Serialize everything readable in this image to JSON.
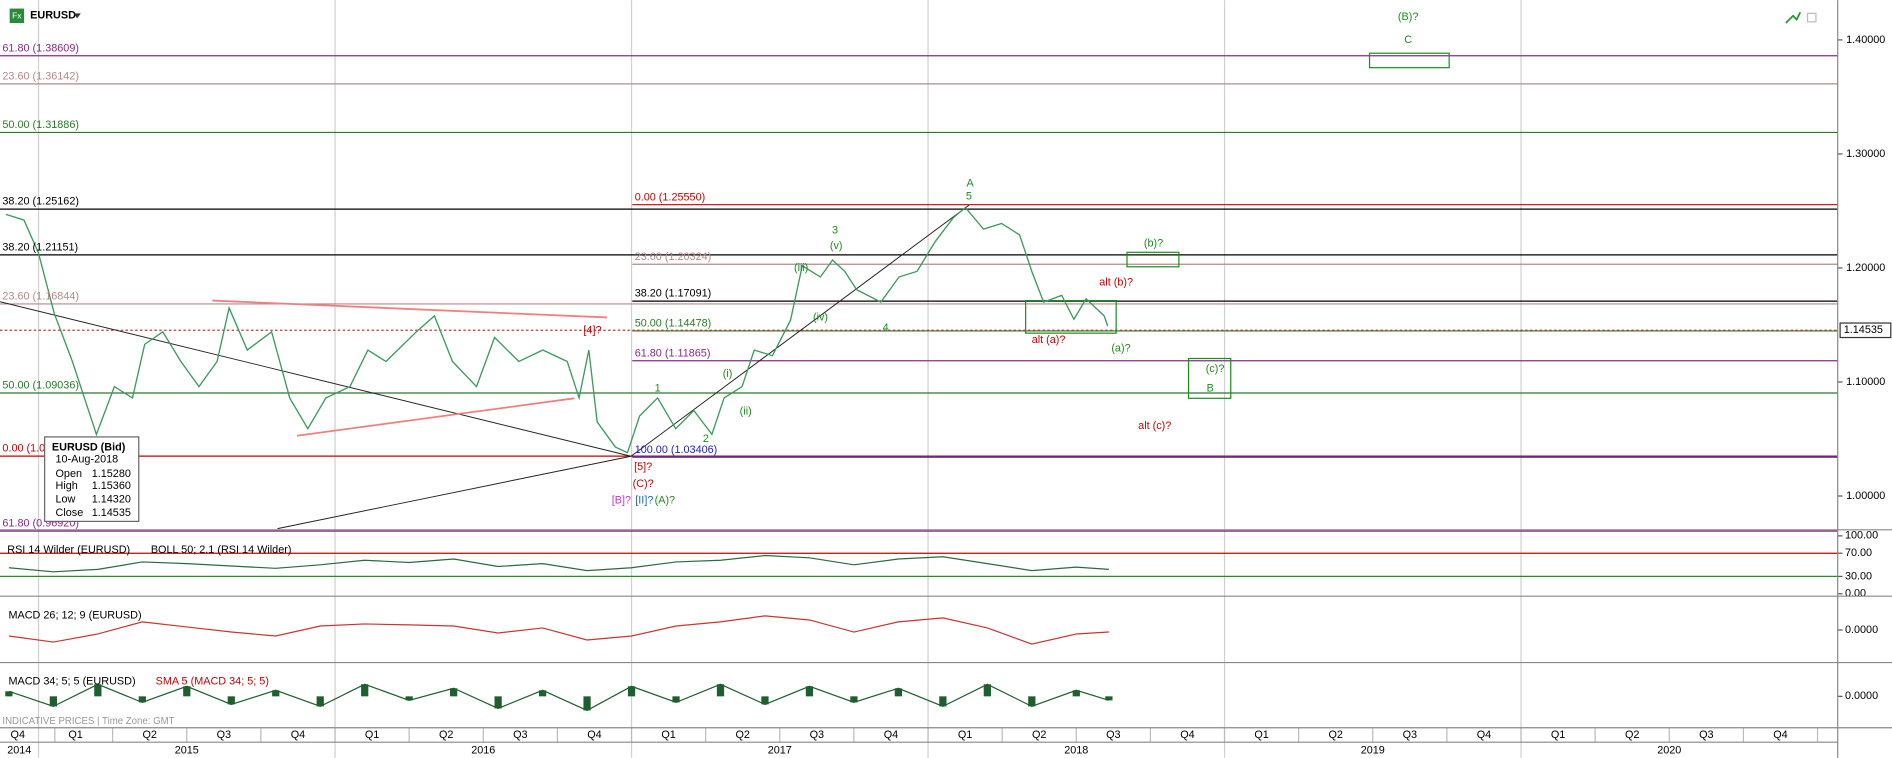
{
  "header": {
    "symbol": "EURUSD"
  },
  "chart_data": {
    "type": "line",
    "x": [
      2014.89,
      2014.951,
      2015.0,
      2015.053,
      2015.114,
      2015.195,
      2015.256,
      2015.317,
      2015.358,
      2015.419,
      2015.48,
      2015.541,
      2015.602,
      2015.643,
      2015.704,
      2015.786,
      2015.847,
      2015.908,
      2015.969,
      2016.05,
      2016.111,
      2016.172,
      2016.274,
      2016.335,
      2016.396,
      2016.477,
      2016.538,
      2016.62,
      2016.701,
      2016.783,
      2016.823,
      2016.856,
      2016.884,
      2016.945,
      2016.986,
      2017.027,
      2017.088,
      2017.149,
      2017.21,
      2017.271,
      2017.312,
      2017.373,
      2017.414,
      2017.475,
      2017.536,
      2017.576,
      2017.637,
      2017.678,
      2017.719,
      2017.759,
      2017.841,
      2017.902,
      2017.963,
      2018.024,
      2018.085,
      2018.126,
      2018.187,
      2018.248,
      2018.309,
      2018.35,
      2018.39,
      2018.451,
      2018.492,
      2018.533,
      2018.594,
      2018.606
    ],
    "series": [
      {
        "name": "EURUSD",
        "color": "#3b9a5c",
        "values": [
          1.247,
          1.242,
          1.213,
          1.16,
          1.118,
          1.054,
          1.096,
          1.086,
          1.133,
          1.144,
          1.118,
          1.096,
          1.118,
          1.165,
          1.128,
          1.144,
          1.086,
          1.059,
          1.086,
          1.096,
          1.128,
          1.118,
          1.144,
          1.158,
          1.118,
          1.096,
          1.139,
          1.118,
          1.128,
          1.118,
          1.086,
          1.128,
          1.065,
          1.043,
          1.038,
          1.07,
          1.086,
          1.059,
          1.075,
          1.054,
          1.086,
          1.096,
          1.128,
          1.123,
          1.154,
          1.202,
          1.192,
          1.207,
          1.197,
          1.181,
          1.17,
          1.192,
          1.197,
          1.223,
          1.244,
          1.253,
          1.234,
          1.239,
          1.229,
          1.197,
          1.17,
          1.176,
          1.155,
          1.173,
          1.158,
          1.149
        ]
      }
    ],
    "xlim": [
      2014.87,
      2021.068
    ],
    "ylim": [
      0.9714,
      1.4349
    ],
    "yticks": [
      {
        "value": 1.4,
        "label": "1.40000"
      },
      {
        "value": 1.3,
        "label": "1.30000"
      },
      {
        "value": 1.2,
        "label": "1.20000"
      },
      {
        "value": 1.1,
        "label": "1.10000"
      },
      {
        "value": 1.0,
        "label": "1.00000"
      }
    ],
    "xticks": [
      {
        "value": 2014.93,
        "label": "Q4"
      },
      {
        "value": 2015.125,
        "label": "Q1"
      },
      {
        "value": 2015.375,
        "label": "Q2"
      },
      {
        "value": 2015.625,
        "label": "Q3"
      },
      {
        "value": 2015.875,
        "label": "Q4"
      },
      {
        "value": 2016.125,
        "label": "Q1"
      },
      {
        "value": 2016.375,
        "label": "Q2"
      },
      {
        "value": 2016.625,
        "label": "Q3"
      },
      {
        "value": 2016.875,
        "label": "Q4"
      },
      {
        "value": 2017.125,
        "label": "Q1"
      },
      {
        "value": 2017.375,
        "label": "Q2"
      },
      {
        "value": 2017.625,
        "label": "Q3"
      },
      {
        "value": 2017.875,
        "label": "Q4"
      },
      {
        "value": 2018.125,
        "label": "Q1"
      },
      {
        "value": 2018.375,
        "label": "Q2"
      },
      {
        "value": 2018.625,
        "label": "Q3"
      },
      {
        "value": 2018.875,
        "label": "Q4"
      },
      {
        "value": 2019.125,
        "label": "Q1"
      },
      {
        "value": 2019.375,
        "label": "Q2"
      },
      {
        "value": 2019.625,
        "label": "Q3"
      },
      {
        "value": 2019.875,
        "label": "Q4"
      },
      {
        "value": 2020.125,
        "label": "Q1"
      },
      {
        "value": 2020.375,
        "label": "Q2"
      },
      {
        "value": 2020.625,
        "label": "Q3"
      },
      {
        "value": 2020.875,
        "label": "Q4"
      }
    ],
    "year_ticks": [
      {
        "value": 2014,
        "label": "2014"
      },
      {
        "value": 2015,
        "label": "2015"
      },
      {
        "value": 2016,
        "label": "2016"
      },
      {
        "value": 2017,
        "label": "2017"
      },
      {
        "value": 2018,
        "label": "2018"
      },
      {
        "value": 2019,
        "label": "2019"
      },
      {
        "value": 2020,
        "label": "2020"
      }
    ],
    "grid": true,
    "last_price": {
      "value": 1.14535,
      "label": "1.14535",
      "color": "#cc3333"
    },
    "levels": [
      {
        "value": 1.38609,
        "label": "61.80 (1.38609)",
        "color": "#8a2a8a"
      },
      {
        "value": 1.36142,
        "label": "23.60 (1.36142)",
        "color": "#b58a8a"
      },
      {
        "value": 1.31886,
        "label": "50.00 (1.31886)",
        "color": "#2a7a2a"
      },
      {
        "value": 1.25162,
        "label": "38.20 (1.25162)",
        "color": "#000000"
      },
      {
        "value": 1.21151,
        "label": "38.20 (1.21151)",
        "color": "#000000"
      },
      {
        "value": 1.16844,
        "label": "23.60 (1.16844)",
        "color": "#b58a8a"
      },
      {
        "value": 1.09036,
        "label": "50.00 (1.09036)",
        "color": "#2a7a2a"
      },
      {
        "value": 1.035,
        "label": "0.00 (1.0",
        "color": "#cc0000"
      },
      {
        "value": 0.9692,
        "label": "61.80 (0.96920)",
        "color": "#8a2a8a"
      }
    ],
    "levels_right": [
      {
        "value": 1.2555,
        "label": "0.00 (1.25550)",
        "color": "#cc0000"
      },
      {
        "value": 1.20324,
        "label": "23.60 (1.20324)",
        "color": "#b58a8a"
      },
      {
        "value": 1.17091,
        "label": "38.20 (1.17091)",
        "color": "#000000"
      },
      {
        "value": 1.14478,
        "label": "50.00 (1.14478)",
        "color": "#2a7a2a"
      },
      {
        "value": 1.11865,
        "label": "61.80 (1.11865)",
        "color": "#8a2a8a"
      },
      {
        "value": 1.03406,
        "label": "100.00 (1.03406)",
        "color": "#2020cc"
      }
    ],
    "annotations": [
      {
        "text": "(B)?",
        "color": "#1a8f1a"
      },
      {
        "text": "C",
        "color": "#1a8f1a"
      },
      {
        "text": "A",
        "color": "#1a8f1a"
      },
      {
        "text": "5",
        "color": "#1a8f1a"
      },
      {
        "text": "3",
        "color": "#1a8f1a"
      },
      {
        "text": "(v)",
        "color": "#1a8f1a"
      },
      {
        "text": "(iii)",
        "color": "#1a8f1a"
      },
      {
        "text": "(iv)",
        "color": "#1a8f1a"
      },
      {
        "text": "4",
        "color": "#1a8f1a"
      },
      {
        "text": "(b)?",
        "color": "#1a8f1a"
      },
      {
        "text": "alt (b)?",
        "color": "#cc0000"
      },
      {
        "text": "alt (a)?",
        "color": "#cc0000"
      },
      {
        "text": "(a)?",
        "color": "#1a8f1a"
      },
      {
        "text": "(c)?",
        "color": "#1a8f1a"
      },
      {
        "text": "B",
        "color": "#1a8f1a"
      },
      {
        "text": "alt (c)?",
        "color": "#cc0000"
      },
      {
        "text": "[4]?",
        "color": "#cc0000"
      },
      {
        "text": "1",
        "color": "#1a8f1a"
      },
      {
        "text": "(i)",
        "color": "#1a8f1a"
      },
      {
        "text": "(ii)",
        "color": "#1a8f1a"
      },
      {
        "text": "2",
        "color": "#1a8f1a"
      },
      {
        "text": "[5]?",
        "color": "#cc0000"
      },
      {
        "text": "(C)?",
        "color": "#cc0000"
      },
      {
        "text": "[B]?",
        "color": "#cc33cc"
      },
      {
        "text": "[II]?",
        "color": "#2266aa"
      },
      {
        "text": "(A)?",
        "color": "#1a8f1a"
      }
    ],
    "infobox": {
      "title": "EURUSD (Bid)",
      "date": "10-Aug-2018",
      "rows": [
        [
          "Open",
          "1.15280"
        ],
        [
          "High",
          "1.15360"
        ],
        [
          "Low",
          "1.14320"
        ],
        [
          "Close",
          "1.14535"
        ]
      ]
    },
    "footer": "INDICATIVE PRICES | Time Zone: GMT"
  },
  "rsi": {
    "title": "RSI 14 Wilder (EURUSD)",
    "overlay": "BOLL 50; 2.1 (RSI 14 Wilder)",
    "color": "#2d6a3e",
    "x": [
      2014.9,
      2015.05,
      2015.2,
      2015.35,
      2015.5,
      2015.65,
      2015.8,
      2015.95,
      2016.1,
      2016.25,
      2016.4,
      2016.55,
      2016.7,
      2016.85,
      2017.0,
      2017.15,
      2017.3,
      2017.45,
      2017.6,
      2017.75,
      2017.9,
      2018.05,
      2018.2,
      2018.35,
      2018.5,
      2018.61
    ],
    "values": [
      45,
      38,
      42,
      55,
      52,
      48,
      44,
      50,
      58,
      54,
      60,
      47,
      52,
      40,
      45,
      55,
      58,
      66,
      62,
      50,
      60,
      64,
      52,
      40,
      46,
      42
    ],
    "ylim": [
      0,
      100
    ],
    "yticks": [
      {
        "value": 100,
        "label": "100.00"
      },
      {
        "value": 70,
        "label": "70.00"
      },
      {
        "value": 30,
        "label": "30.00"
      },
      {
        "value": 0,
        "label": "0.00"
      }
    ]
  },
  "macd": {
    "title": "MACD 26; 12; 9 (EURUSD)",
    "color": "#cc3333",
    "x": [
      2014.9,
      2015.05,
      2015.2,
      2015.35,
      2015.5,
      2015.65,
      2015.8,
      2015.95,
      2016.1,
      2016.25,
      2016.4,
      2016.55,
      2016.7,
      2016.85,
      2017.0,
      2017.15,
      2017.3,
      2017.45,
      2017.6,
      2017.75,
      2017.9,
      2018.05,
      2018.2,
      2018.35,
      2018.5,
      2018.61
    ],
    "values": [
      -0.006,
      -0.012,
      -0.004,
      0.008,
      0.003,
      -0.002,
      -0.006,
      0.004,
      0.006,
      0.005,
      0.004,
      -0.003,
      0.002,
      -0.01,
      -0.006,
      0.004,
      0.008,
      0.014,
      0.01,
      -0.002,
      0.008,
      0.012,
      0.002,
      -0.014,
      -0.004,
      -0.002
    ],
    "ylim": [
      -0.03,
      0.03
    ],
    "yticks": [
      {
        "value": 0,
        "label": "0.0000"
      }
    ]
  },
  "macd2": {
    "title": "MACD 34; 5; 5 (EURUSD)",
    "overlay": "SMA 5 (MACD 34; 5; 5)",
    "color": "#1f5f2f",
    "x": [
      2014.9,
      2015.05,
      2015.2,
      2015.35,
      2015.5,
      2015.65,
      2015.8,
      2015.95,
      2016.1,
      2016.25,
      2016.4,
      2016.55,
      2016.7,
      2016.85,
      2017.0,
      2017.15,
      2017.3,
      2017.45,
      2017.6,
      2017.75,
      2017.9,
      2018.05,
      2018.2,
      2018.35,
      2018.5,
      2018.61
    ],
    "values": [
      0.005,
      -0.01,
      0.012,
      -0.006,
      0.01,
      -0.008,
      0.006,
      -0.01,
      0.012,
      -0.004,
      0.008,
      -0.012,
      0.006,
      -0.014,
      0.01,
      -0.006,
      0.012,
      -0.008,
      0.01,
      -0.006,
      0.008,
      -0.01,
      0.012,
      -0.01,
      0.006,
      -0.004
    ],
    "ylim": [
      -0.03,
      0.03
    ],
    "yticks": [
      {
        "value": 0,
        "label": "0.0000"
      }
    ]
  }
}
